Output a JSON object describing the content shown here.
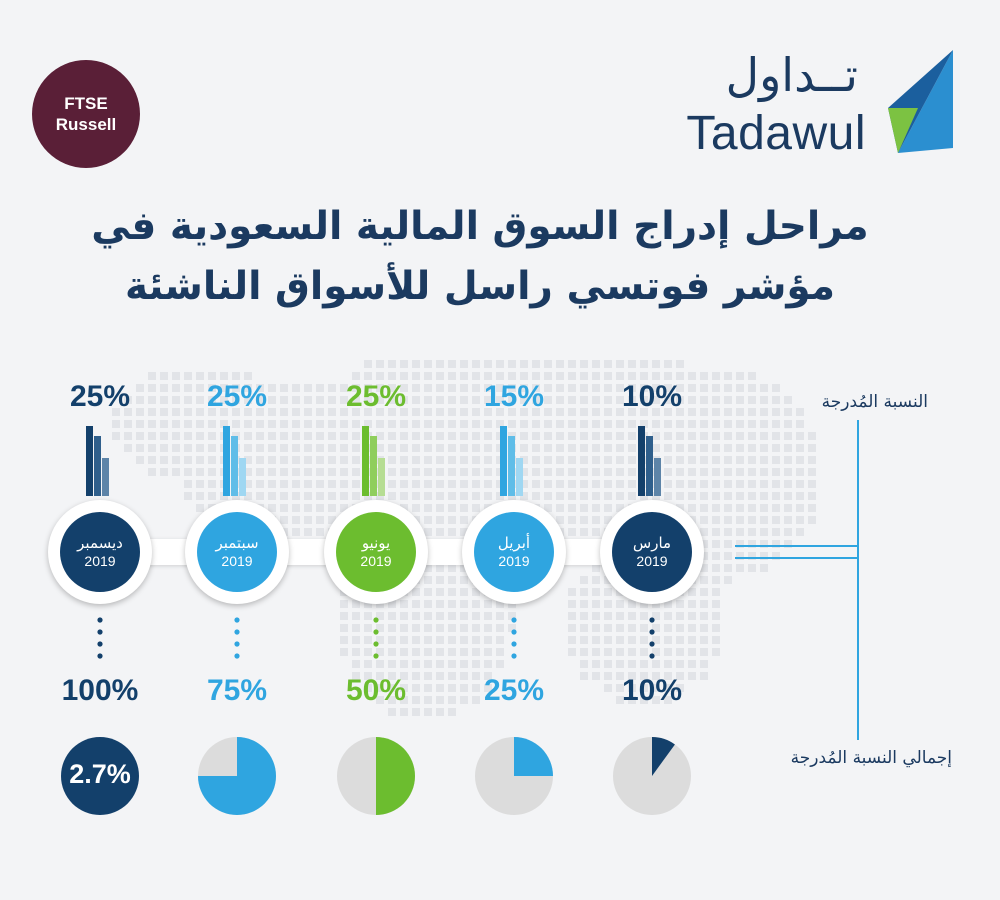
{
  "badge": {
    "line1": "FTSE",
    "line2": "Russell",
    "color": "#5a1f37"
  },
  "logo": {
    "arabic": "تــداول",
    "english": "Tadawul"
  },
  "title": {
    "line1": "مراحل إدراج السوق المالية السعودية في",
    "line2": "مؤشر فوتسي راسل للأسواق الناشئة"
  },
  "labels": {
    "stage_weight": "النسبة المُدرجة",
    "cumulative": "إجمالي النسبة المُدرجة"
  },
  "colors": {
    "dark_navy": "#13406b",
    "sky_blue": "#2fa5e0",
    "green": "#6cbd2f",
    "pie_bg": "#dcdcdc"
  },
  "center_value": "2.7%",
  "chart_data": {
    "type": "pie",
    "categories": [
      "مارس 2019",
      "أبريل 2019",
      "يونيو 2019",
      "سبتمبر 2019",
      "ديسمبر 2019"
    ],
    "series": [
      {
        "name": "النسبة المُدرجة",
        "values": [
          10,
          15,
          25,
          25,
          25
        ]
      },
      {
        "name": "إجمالي النسبة المُدرجة",
        "values": [
          10,
          25,
          50,
          75,
          100
        ]
      }
    ],
    "unit": "%",
    "stages": [
      {
        "month": "مارس",
        "year": "2019",
        "stage_pct": "10%",
        "total_pct": "10%",
        "total": 10,
        "color": "#13406b"
      },
      {
        "month": "أبريل",
        "year": "2019",
        "stage_pct": "15%",
        "total_pct": "25%",
        "total": 25,
        "color": "#2fa5e0"
      },
      {
        "month": "يونيو",
        "year": "2019",
        "stage_pct": "25%",
        "total_pct": "50%",
        "total": 50,
        "color": "#6cbd2f"
      },
      {
        "month": "سبتمبر",
        "year": "2019",
        "stage_pct": "25%",
        "total_pct": "75%",
        "total": 75,
        "color": "#2fa5e0"
      },
      {
        "month": "ديسمبر",
        "year": "2019",
        "stage_pct": "25%",
        "total_pct": "100%",
        "total": 100,
        "color": "#13406b"
      }
    ]
  }
}
